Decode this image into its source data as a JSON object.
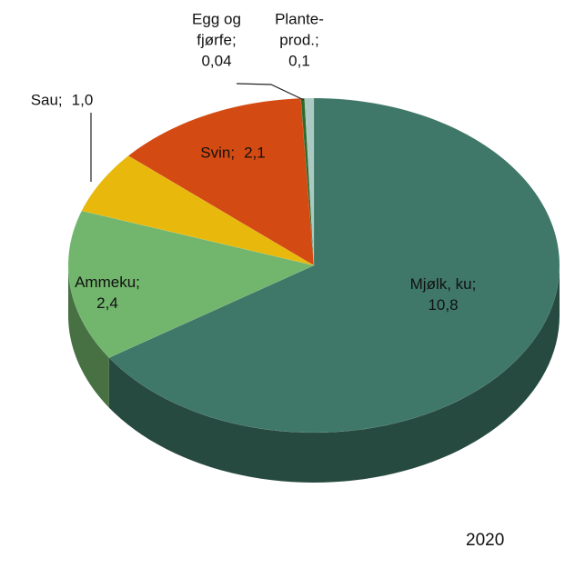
{
  "chart_data": {
    "type": "pie",
    "categories": [
      "Mjølk, ku;",
      "Ammeku;",
      "Sau;",
      "Svin;",
      "Egg og fjørfe;",
      "Plante-prod.;"
    ],
    "values": [
      10.8,
      2.4,
      1.0,
      2.1,
      0.04,
      0.1
    ],
    "value_labels": [
      "10,8",
      "2,4",
      "1,0",
      "2,1",
      "0,04",
      "0,1"
    ],
    "colors": [
      "#3f7868",
      "#72b56c",
      "#e8b90c",
      "#d34a12",
      "#2f6a2c",
      "#a9c9c2"
    ],
    "annotation": "2020"
  }
}
